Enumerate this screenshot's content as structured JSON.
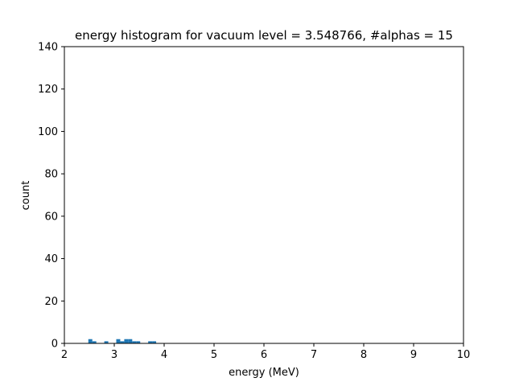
{
  "chart_data": {
    "type": "bar",
    "title": "energy histogram for vacuum level = 3.548766, #alphas = 15",
    "xlabel": "energy (MeV)",
    "ylabel": "count",
    "xlim": [
      2,
      10
    ],
    "ylim": [
      0,
      140
    ],
    "x_ticks": [
      "2",
      "3",
      "4",
      "5",
      "6",
      "7",
      "8",
      "9",
      "10"
    ],
    "y_ticks": [
      "0",
      "20",
      "40",
      "60",
      "80",
      "100",
      "120",
      "140"
    ],
    "bin_width": 0.08,
    "bar_color": "#1f77b4",
    "bins": [
      {
        "x_start": 2.48,
        "count": 2
      },
      {
        "x_start": 2.56,
        "count": 1
      },
      {
        "x_start": 2.8,
        "count": 1
      },
      {
        "x_start": 3.04,
        "count": 2
      },
      {
        "x_start": 3.12,
        "count": 1
      },
      {
        "x_start": 3.2,
        "count": 2
      },
      {
        "x_start": 3.28,
        "count": 2
      },
      {
        "x_start": 3.36,
        "count": 1
      },
      {
        "x_start": 3.44,
        "count": 1
      },
      {
        "x_start": 3.68,
        "count": 1
      },
      {
        "x_start": 3.76,
        "count": 1
      }
    ],
    "grid": false,
    "legend": "none"
  }
}
